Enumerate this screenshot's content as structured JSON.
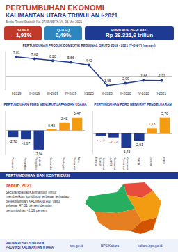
{
  "header": {
    "title": "PERTUMBUHAN EKONOMI",
    "subtitle": "KALIMANTAN UTARA TRIWULAN I-2021",
    "note": "Berita Resmi Statistik No. 27/05/65/Th.VII, 05 Mei 2021"
  },
  "indicators": [
    {
      "label": "Y-ON-Y",
      "value": "-1,91%"
    },
    {
      "label": "Q-TO-Q",
      "value": "0,49%"
    },
    {
      "label": "PDRB ADH BERLAKU",
      "value": "Rp 26.321,6 triliun"
    }
  ],
  "chart_data": [
    {
      "type": "line",
      "title": "PERTUMBUHAN PRODUK DOMESTIK REGIONAL BRUTO 2019 - 2021 (Y-ON-Y) (persen)",
      "categories": [
        "I-2019",
        "II-2019",
        "III-2019",
        "IV-2019",
        "I-2020",
        "II-2020",
        "III-2020",
        "IV-2020",
        "I-2021"
      ],
      "values": [
        7.81,
        7.02,
        6.2,
        5.56,
        4.42,
        -3.95,
        -2.99,
        -1.86,
        -1.91
      ],
      "value_labels": [
        "7,81",
        "7,02",
        "6,20",
        "5,56",
        "4,42",
        "-3,95",
        "-2,99",
        "-1,86",
        "-1,91"
      ],
      "color": "#1f3a93",
      "marker": "circle",
      "ylim": [
        -6,
        10
      ],
      "grid": false,
      "data_labels": true,
      "tick_labels": "x"
    },
    {
      "type": "bar",
      "title": "PERTUMBUHAN PDRB MENURUT LAPANGAN USAHA",
      "categories": [
        "Pertanian",
        "Pertambangan",
        "Industri Pengolahan",
        "Konstruksi",
        "Perdagangan",
        "Adm. Pemerintahan"
      ],
      "values": [
        -2.78,
        -3.67,
        -7.94,
        0.45,
        3.42,
        5.47
      ],
      "value_labels": [
        "-2,78",
        "-3,67",
        "-7,94",
        "0,45",
        "3,42",
        "5,47"
      ],
      "colors": [
        "#1f3a93",
        "#1f3a93",
        "#1f3a93",
        "#f39c12",
        "#f39c12",
        "#f39c12"
      ],
      "ylim": [
        -10,
        8
      ],
      "grid": false,
      "data_labels": true,
      "tick_labels": "x"
    },
    {
      "type": "bar",
      "title": "PERTUMBUHAN PDRB MENURUT PENGELUARAN",
      "categories": [
        "Konsumsi Rumah Tangga",
        "Konsumsi LNPRT",
        "Konsumsi Pemerintah",
        "PMTB",
        "Ekspor",
        "Impor"
      ],
      "values": [
        -1.13,
        -1.72,
        -5.43,
        -2.91,
        1.73,
        5.76
      ],
      "value_labels": [
        "-1,13",
        "-1,72",
        "-5,43",
        "-2,91",
        "1,73",
        "5,76"
      ],
      "colors": [
        "#1f3a93",
        "#1f3a93",
        "#1f3a93",
        "#1f3a93",
        "#f39c12",
        "#f39c12"
      ],
      "ylim": [
        -8,
        8
      ],
      "grid": false,
      "data_labels": true,
      "tick_labels": "x"
    }
  ],
  "section": {
    "title": "PERTUMBUHAN DAN KONTRIBUSI",
    "year": "Tahun 2021",
    "text": "Secara spasial Kalimantan Timur memberikan kontribusi terbesar terhadap perekonomian KALIMANTAN, yaitu sebesar 47,31 persen dengan pertumbuhan -2,36 persen"
  },
  "footer": {
    "org": "BADAN PUSAT STATISTIK PROVINSI KALIMANTAN UTARA",
    "links": [
      "bps.go.id",
      "BPS Kaltara",
      "kaltara.bps.go.id"
    ]
  }
}
